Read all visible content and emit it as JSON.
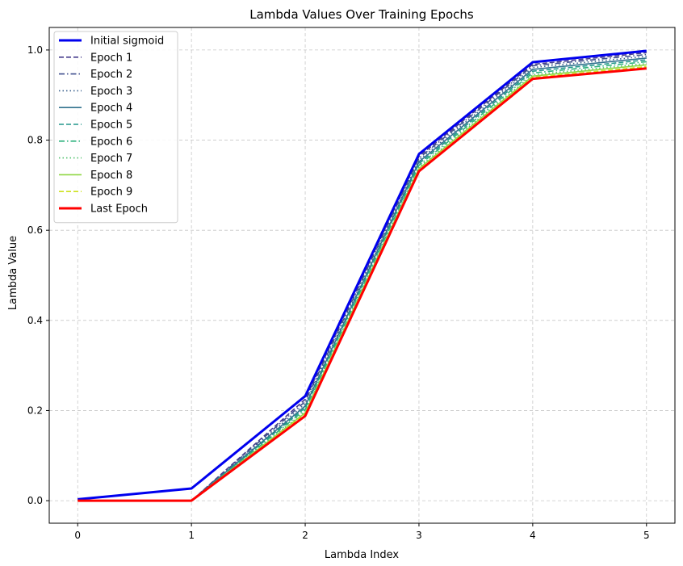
{
  "chart_data": {
    "type": "line",
    "title": "Lambda Values Over Training Epochs",
    "xlabel": "Lambda Index",
    "ylabel": "Lambda Value",
    "x": [
      0,
      1,
      2,
      3,
      4,
      5
    ],
    "xlim": [
      -0.25,
      5.25
    ],
    "ylim": [
      -0.05,
      1.05
    ],
    "xticks": [
      "0",
      "1",
      "2",
      "3",
      "4",
      "5"
    ],
    "yticks": [
      {
        "value": 0.0,
        "label": "0.0"
      },
      {
        "value": 0.2,
        "label": "0.2"
      },
      {
        "value": 0.4,
        "label": "0.4"
      },
      {
        "value": 0.6,
        "label": "0.6"
      },
      {
        "value": 0.8,
        "label": "0.8"
      },
      {
        "value": 1.0,
        "label": "1.0"
      }
    ],
    "grid": true,
    "legend_position": "top-left",
    "series": [
      {
        "name": "Initial sigmoid",
        "color": "#0000ee",
        "style": "solid",
        "width": 3,
        "values": [
          0.003,
          0.027,
          0.232,
          0.769,
          0.973,
          0.998
        ]
      },
      {
        "name": "Epoch 1",
        "color": "#463c8c",
        "style": "dashed",
        "width": 1.6,
        "values": [
          0.0,
          0.0,
          0.225,
          0.764,
          0.968,
          0.994
        ]
      },
      {
        "name": "Epoch 2",
        "color": "#3f4f8d",
        "style": "dashdot",
        "width": 1.6,
        "values": [
          0.0,
          0.0,
          0.22,
          0.76,
          0.965,
          0.99
        ]
      },
      {
        "name": "Epoch 3",
        "color": "#39608d",
        "style": "dotted",
        "width": 1.6,
        "values": [
          0.0,
          0.0,
          0.215,
          0.756,
          0.961,
          0.986
        ]
      },
      {
        "name": "Epoch 4",
        "color": "#31728e",
        "style": "solid",
        "width": 1.6,
        "values": [
          0.0,
          0.0,
          0.21,
          0.752,
          0.957,
          0.982
        ]
      },
      {
        "name": "Epoch 5",
        "color": "#22968b",
        "style": "dashed",
        "width": 1.6,
        "values": [
          0.0,
          0.0,
          0.206,
          0.748,
          0.953,
          0.978
        ]
      },
      {
        "name": "Epoch 6",
        "color": "#2db27d",
        "style": "dashdot",
        "width": 1.6,
        "values": [
          0.0,
          0.0,
          0.202,
          0.744,
          0.949,
          0.974
        ]
      },
      {
        "name": "Epoch 7",
        "color": "#4fc16b",
        "style": "dotted",
        "width": 1.6,
        "values": [
          0.0,
          0.0,
          0.198,
          0.74,
          0.945,
          0.97
        ]
      },
      {
        "name": "Epoch 8",
        "color": "#8fd744",
        "style": "solid",
        "width": 1.6,
        "values": [
          0.0,
          0.0,
          0.195,
          0.737,
          0.942,
          0.967
        ]
      },
      {
        "name": "Epoch 9",
        "color": "#cde11d",
        "style": "dashed",
        "width": 1.6,
        "values": [
          0.0,
          0.0,
          0.192,
          0.734,
          0.939,
          0.963
        ]
      },
      {
        "name": "Last Epoch",
        "color": "#ff0000",
        "style": "solid",
        "width": 3,
        "values": [
          0.0,
          0.0,
          0.188,
          0.731,
          0.936,
          0.959
        ]
      }
    ]
  }
}
